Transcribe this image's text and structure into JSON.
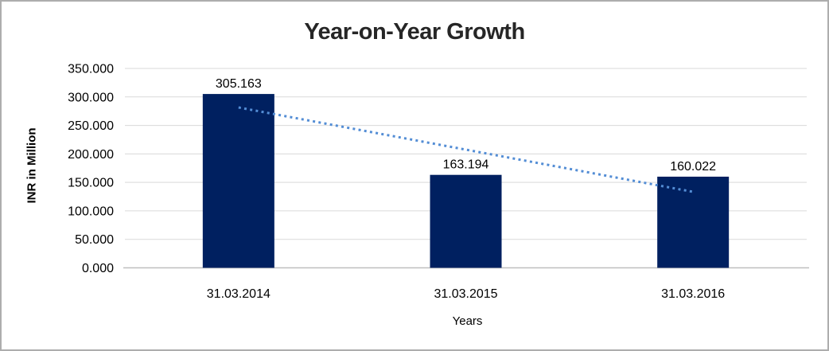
{
  "chart_data": {
    "type": "bar",
    "title": "Year-on-Year Growth",
    "xlabel": "Years",
    "ylabel": "INR in Million",
    "categories": [
      "31.03.2014",
      "31.03.2015",
      "31.03.2016"
    ],
    "values": [
      305.163,
      163.194,
      160.022
    ],
    "data_labels": [
      "305.163",
      "163.194",
      "160.022"
    ],
    "ylim": [
      0,
      350
    ],
    "ytick_step": 50,
    "ytick_labels": [
      "0.000",
      "50.000",
      "100.000",
      "150.000",
      "200.000",
      "250.000",
      "300.000",
      "350.000"
    ],
    "grid": true,
    "legend": "none",
    "trendline": {
      "style": "dotted",
      "color": "#538DD5",
      "values_at_categories": [
        281.5,
        207.5,
        133.4
      ]
    },
    "colors": {
      "bar": "#002060",
      "grid": "#d9d9d9",
      "axis": "#bfbfbf",
      "text": "#000000",
      "title": "#262626",
      "frame_border": "#adadad",
      "background": "#ffffff"
    }
  }
}
